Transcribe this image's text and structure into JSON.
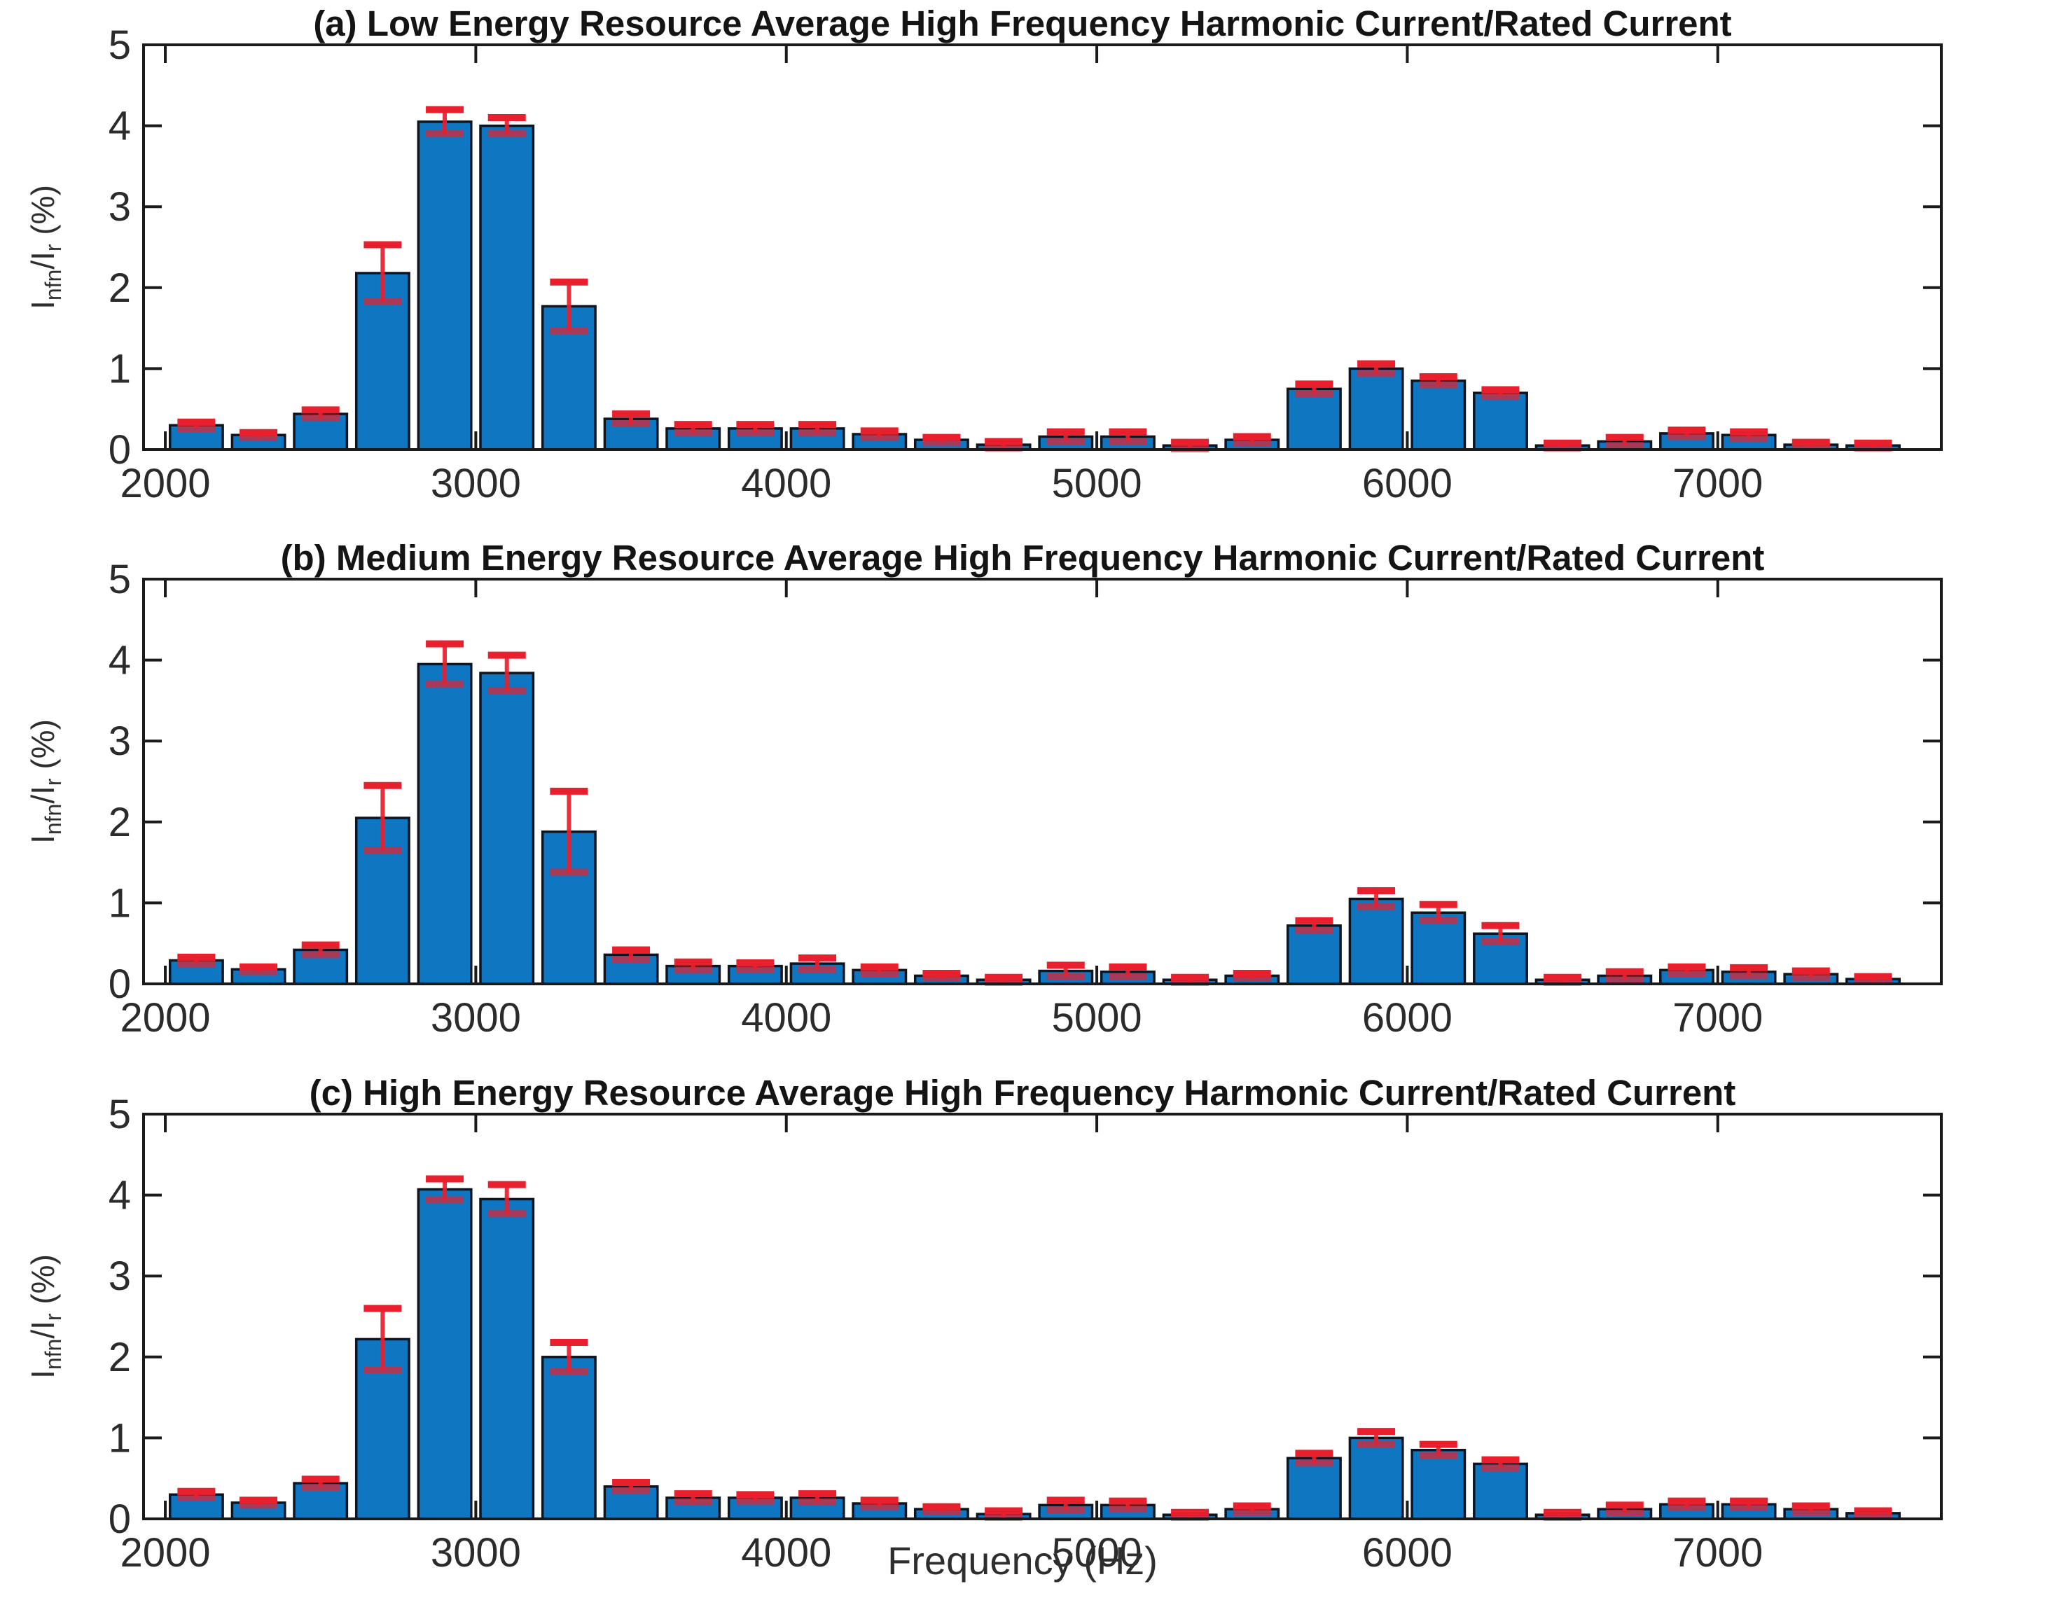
{
  "figure": {
    "xlabel": "Frequency (Hz)",
    "ylabel_text": "Infn/Ir (%)",
    "ylabel": {
      "base1": "I",
      "sub1": "nfn",
      "base2": "/I",
      "sub2": "r",
      "suffix": " (%)"
    },
    "background_color": "#ffffff",
    "axis_color": "#1a1a1a",
    "tick_label_color": "#2b2b2b"
  },
  "chart_data": [
    {
      "type": "bar",
      "title": "(a) Low Energy Resource Average High Frequency Harmonic Current/Rated Current",
      "ylabel": "Infn/Ir (%)",
      "xlim": [
        1930,
        7720
      ],
      "ylim": [
        0,
        5
      ],
      "x_ticks": [
        2000,
        3000,
        4000,
        5000,
        6000,
        7000
      ],
      "y_ticks": [
        0,
        1,
        2,
        3,
        4,
        5
      ],
      "bar_width_hz": 170,
      "bar_color": "#0f76c2",
      "bar_edge_color": "#0d1520",
      "error_color": "#e8202e",
      "grid": false,
      "x": [
        2100,
        2300,
        2500,
        2700,
        2900,
        3100,
        3300,
        3500,
        3700,
        3900,
        4100,
        4300,
        4500,
        4700,
        4900,
        5100,
        5300,
        5500,
        5700,
        5900,
        6100,
        6300,
        6500,
        6700,
        6900,
        7100,
        7300,
        7500
      ],
      "values": [
        0.3,
        0.18,
        0.44,
        2.18,
        4.05,
        4.0,
        1.77,
        0.38,
        0.26,
        0.26,
        0.26,
        0.19,
        0.12,
        0.06,
        0.16,
        0.16,
        0.05,
        0.12,
        0.75,
        1.0,
        0.85,
        0.7,
        0.05,
        0.1,
        0.2,
        0.18,
        0.06,
        0.05
      ],
      "errors": [
        0.04,
        0.03,
        0.05,
        0.35,
        0.15,
        0.1,
        0.3,
        0.06,
        0.05,
        0.05,
        0.05,
        0.04,
        0.03,
        0.04,
        0.06,
        0.06,
        0.04,
        0.04,
        0.06,
        0.06,
        0.05,
        0.04,
        0.03,
        0.05,
        0.04,
        0.04,
        0.03,
        0.03
      ]
    },
    {
      "type": "bar",
      "title": "(b) Medium Energy Resource Average High Frequency Harmonic Current/Rated Current",
      "ylabel": "Infn/Ir (%)",
      "xlim": [
        1930,
        7720
      ],
      "ylim": [
        0,
        5
      ],
      "x_ticks": [
        2000,
        3000,
        4000,
        5000,
        6000,
        7000
      ],
      "y_ticks": [
        0,
        1,
        2,
        3,
        4,
        5
      ],
      "bar_width_hz": 170,
      "bar_color": "#0f76c2",
      "bar_edge_color": "#0d1520",
      "error_color": "#e8202e",
      "grid": false,
      "x": [
        2100,
        2300,
        2500,
        2700,
        2900,
        3100,
        3300,
        3500,
        3700,
        3900,
        4100,
        4300,
        4500,
        4700,
        4900,
        5100,
        5300,
        5500,
        5700,
        5900,
        6100,
        6300,
        6500,
        6700,
        6900,
        7100,
        7300,
        7500
      ],
      "values": [
        0.29,
        0.18,
        0.42,
        2.05,
        3.95,
        3.84,
        1.88,
        0.36,
        0.22,
        0.22,
        0.25,
        0.17,
        0.1,
        0.05,
        0.16,
        0.15,
        0.05,
        0.1,
        0.72,
        1.05,
        0.88,
        0.62,
        0.05,
        0.1,
        0.17,
        0.15,
        0.12,
        0.06
      ],
      "errors": [
        0.04,
        0.03,
        0.06,
        0.4,
        0.25,
        0.22,
        0.5,
        0.06,
        0.05,
        0.04,
        0.07,
        0.04,
        0.03,
        0.03,
        0.07,
        0.06,
        0.03,
        0.03,
        0.06,
        0.1,
        0.1,
        0.1,
        0.03,
        0.05,
        0.04,
        0.05,
        0.04,
        0.03
      ]
    },
    {
      "type": "bar",
      "title": "(c) High Energy Resource Average High Frequency Harmonic Current/Rated Current",
      "ylabel": "Infn/Ir (%)",
      "xlim": [
        1930,
        7720
      ],
      "ylim": [
        0,
        5
      ],
      "x_ticks": [
        2000,
        3000,
        4000,
        5000,
        6000,
        7000
      ],
      "y_ticks": [
        0,
        1,
        2,
        3,
        4,
        5
      ],
      "bar_width_hz": 170,
      "bar_color": "#0f76c2",
      "bar_edge_color": "#0d1520",
      "error_color": "#e8202e",
      "grid": false,
      "x": [
        2100,
        2300,
        2500,
        2700,
        2900,
        3100,
        3300,
        3500,
        3700,
        3900,
        4100,
        4300,
        4500,
        4700,
        4900,
        5100,
        5300,
        5500,
        5700,
        5900,
        6100,
        6300,
        6500,
        6700,
        6900,
        7100,
        7300,
        7500
      ],
      "values": [
        0.3,
        0.2,
        0.44,
        2.22,
        4.07,
        3.95,
        2.0,
        0.4,
        0.26,
        0.26,
        0.26,
        0.19,
        0.12,
        0.06,
        0.17,
        0.17,
        0.05,
        0.12,
        0.75,
        1.0,
        0.85,
        0.68,
        0.05,
        0.12,
        0.18,
        0.18,
        0.12,
        0.07
      ],
      "errors": [
        0.04,
        0.03,
        0.05,
        0.38,
        0.13,
        0.18,
        0.18,
        0.05,
        0.05,
        0.04,
        0.05,
        0.04,
        0.03,
        0.04,
        0.06,
        0.05,
        0.03,
        0.04,
        0.06,
        0.08,
        0.07,
        0.05,
        0.03,
        0.05,
        0.04,
        0.04,
        0.04,
        0.03
      ]
    }
  ]
}
